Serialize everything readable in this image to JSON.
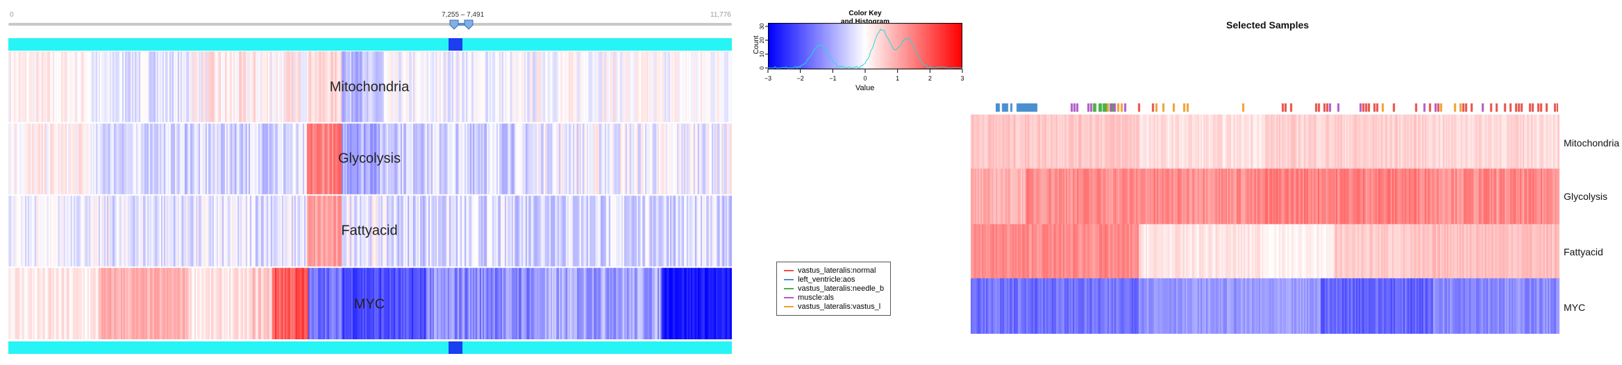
{
  "slider": {
    "min_label": "0",
    "max_label": "11,776",
    "range_label": "7,255 – 7,491",
    "min": 0,
    "max": 11776,
    "lo": 7255,
    "hi": 7491
  },
  "main_heatmap": {
    "rows": [
      "Mitochondria",
      "Glycolysis",
      "Fattyacid",
      "MYC"
    ]
  },
  "color_key": {
    "title_line1": "Color Key",
    "title_line2": "and Histogram",
    "ylabel": "Count",
    "xlabel": "Value",
    "x_ticks": [
      "−3",
      "−2",
      "−1",
      "0",
      "1",
      "2",
      "3"
    ],
    "y_ticks": [
      "0",
      "10",
      "20",
      "30"
    ]
  },
  "legend": {
    "items": [
      {
        "label": "vastus_lateralis:normal",
        "color": "#e8504a"
      },
      {
        "label": "left_ventricle:aos",
        "color": "#4a90d0"
      },
      {
        "label": "vastus_lateralis:needle_b",
        "color": "#4cb04c"
      },
      {
        "label": "muscle:als",
        "color": "#b05ac8"
      },
      {
        "label": "vastus_lateralis:vastus_l",
        "color": "#f0a030"
      }
    ]
  },
  "selected": {
    "title": "Selected Samples",
    "rows": [
      "Mitochondria",
      "Glycolysis",
      "Fattyacid",
      "MYC"
    ]
  },
  "colors": {
    "cyan": "#27f4f4",
    "selection": "#1a3ef0",
    "red": "#ff0000",
    "blue": "#0000ff"
  }
}
